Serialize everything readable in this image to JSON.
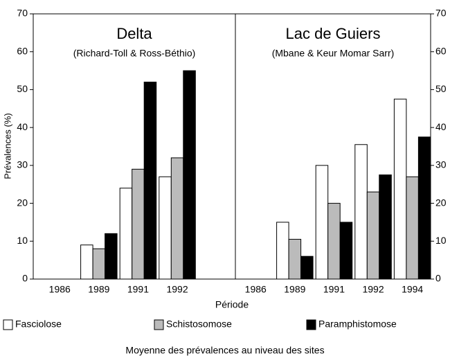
{
  "chart_data": {
    "type": "bar",
    "ylabel": "Prévalences (%)",
    "xlabel": "Période",
    "caption": "Moyenne des prévalences au niveau des sites",
    "ylim": [
      0,
      70
    ],
    "yticks": [
      0,
      10,
      20,
      30,
      40,
      50,
      60,
      70
    ],
    "y2lim": [
      0,
      70
    ],
    "y2ticks": [
      0,
      10,
      20,
      30,
      40,
      50,
      60,
      70
    ],
    "series": [
      {
        "name": "Fasciolose",
        "color": "#ffffff"
      },
      {
        "name": "Schistosomose",
        "color": "#bbbbbb"
      },
      {
        "name": "Paramphistomose",
        "color": "#000000"
      }
    ],
    "panels": [
      {
        "title": "Delta",
        "subtitle": "(Richard-Toll & Ross-Béthio)",
        "categories": [
          "1986",
          "1989",
          "1991",
          "1992"
        ],
        "series": [
          {
            "values": [
              null,
              9,
              24,
              27
            ]
          },
          {
            "values": [
              null,
              8,
              29,
              32
            ]
          },
          {
            "values": [
              null,
              12,
              52,
              55
            ]
          }
        ]
      },
      {
        "title": "Lac de Guiers",
        "subtitle": "(Mbane & Keur Momar Sarr)",
        "categories": [
          "1986",
          "1989",
          "1991",
          "1992",
          "1994"
        ],
        "series": [
          {
            "values": [
              null,
              15,
              30,
              35.5,
              47.5
            ]
          },
          {
            "values": [
              null,
              10.5,
              20,
              23,
              27
            ]
          },
          {
            "values": [
              null,
              6,
              15,
              27.5,
              37.5
            ]
          }
        ]
      }
    ]
  }
}
